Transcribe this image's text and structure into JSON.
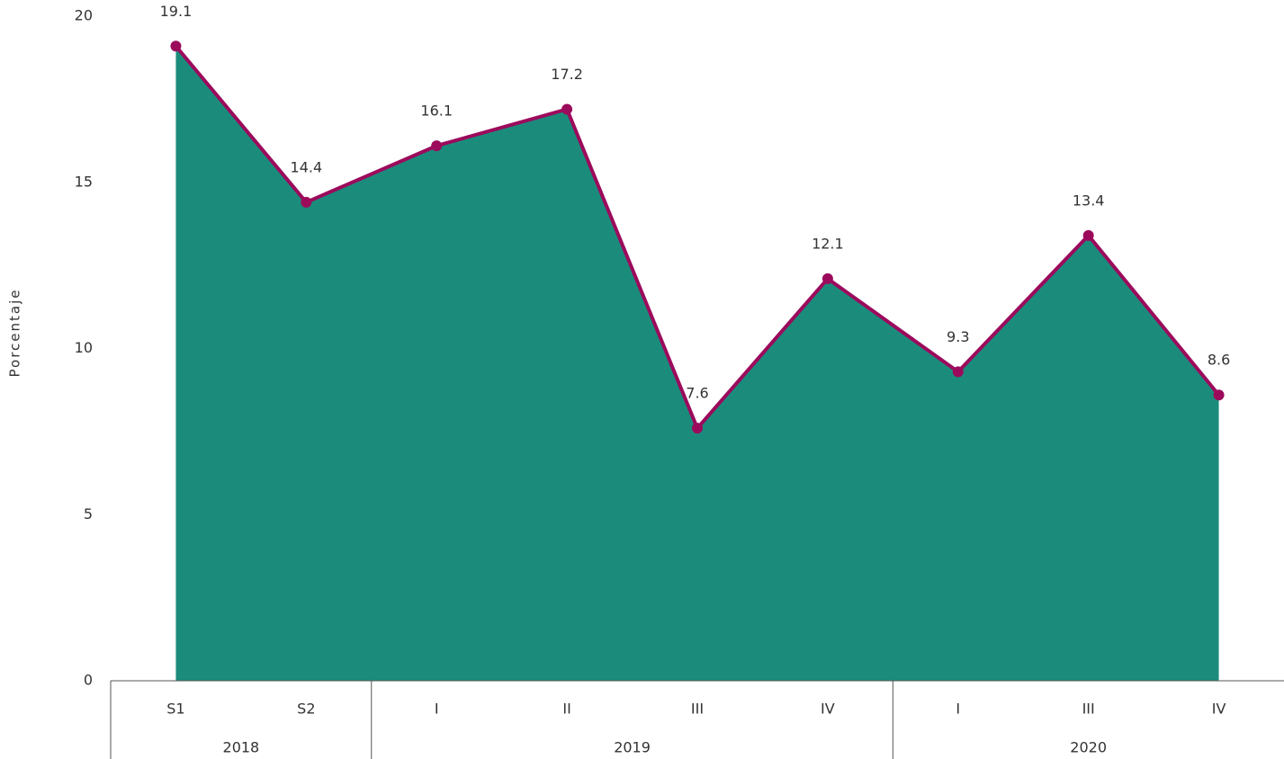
{
  "chart_data": {
    "type": "area",
    "y_label": "Porcentaje",
    "groups": [
      {
        "name": "2018",
        "categories": [
          "S1",
          "S2"
        ]
      },
      {
        "name": "2019",
        "categories": [
          "I",
          "II",
          "III",
          "IV"
        ]
      },
      {
        "name": "2020",
        "categories": [
          "I",
          "III",
          "IV"
        ]
      }
    ],
    "values": [
      19.1,
      14.4,
      16.1,
      17.2,
      7.6,
      12.1,
      9.3,
      13.4,
      8.6
    ],
    "fill_color": "#1b8c7c",
    "line_color": "#9c0a5c",
    "ylim": [
      0,
      20
    ],
    "yticks": [
      0,
      5,
      10,
      15,
      20
    ],
    "grid": false
  }
}
